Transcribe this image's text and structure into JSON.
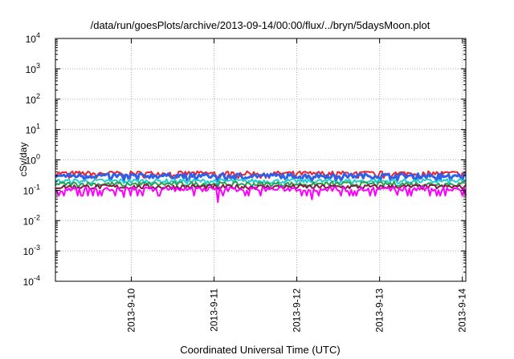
{
  "chart_data": {
    "type": "line",
    "title": "/data/run/goesPlots/archive/2013-09-14/00:00/flux/../bryn/5daysMoon.plot",
    "xlabel": "Coordinated Universal Time (UTC)",
    "ylabel": "cSv/day",
    "x_range": [
      "2013-09-09 02:00",
      "2013-09-14 01:00"
    ],
    "x_ticks": [
      "2013-9-10",
      "2013-9-11",
      "2013-9-12",
      "2013-9-13",
      "2013-9-14"
    ],
    "y_scale": "log",
    "ylim": [
      0.0001,
      10000
    ],
    "y_ticks": [
      {
        "base": "10",
        "exp": "-4"
      },
      {
        "base": "10",
        "exp": "-3"
      },
      {
        "base": "10",
        "exp": "-2"
      },
      {
        "base": "10",
        "exp": "-1"
      },
      {
        "base": "10",
        "exp": "0"
      },
      {
        "base": "10",
        "exp": "1"
      },
      {
        "base": "10",
        "exp": "2"
      },
      {
        "base": "10",
        "exp": "3"
      },
      {
        "base": "10",
        "exp": "4"
      }
    ],
    "grid": true,
    "legend": "none",
    "series": [
      {
        "color": "#e8232f",
        "level": 0.36,
        "dips": [
          0.3,
          0.25,
          0.33,
          0.32
        ]
      },
      {
        "color": "#3060e8",
        "level": 0.3,
        "dips": [
          0.18,
          0.14,
          0.22,
          0.2
        ]
      },
      {
        "color": "#20d0d0",
        "level": 0.2,
        "dips": [
          0.17,
          0.16,
          0.18,
          0.17
        ]
      },
      {
        "color": "#2aa050",
        "level": 0.16,
        "dips": [
          0.14,
          0.13,
          0.15,
          0.14
        ]
      },
      {
        "color": "#7a2040",
        "level": 0.13,
        "dips": [
          0.12,
          0.11,
          0.12,
          0.12
        ]
      },
      {
        "color": "#ff00ff",
        "level": 0.11,
        "dips": [
          0.06,
          0.04,
          0.05,
          0.07
        ]
      }
    ]
  }
}
